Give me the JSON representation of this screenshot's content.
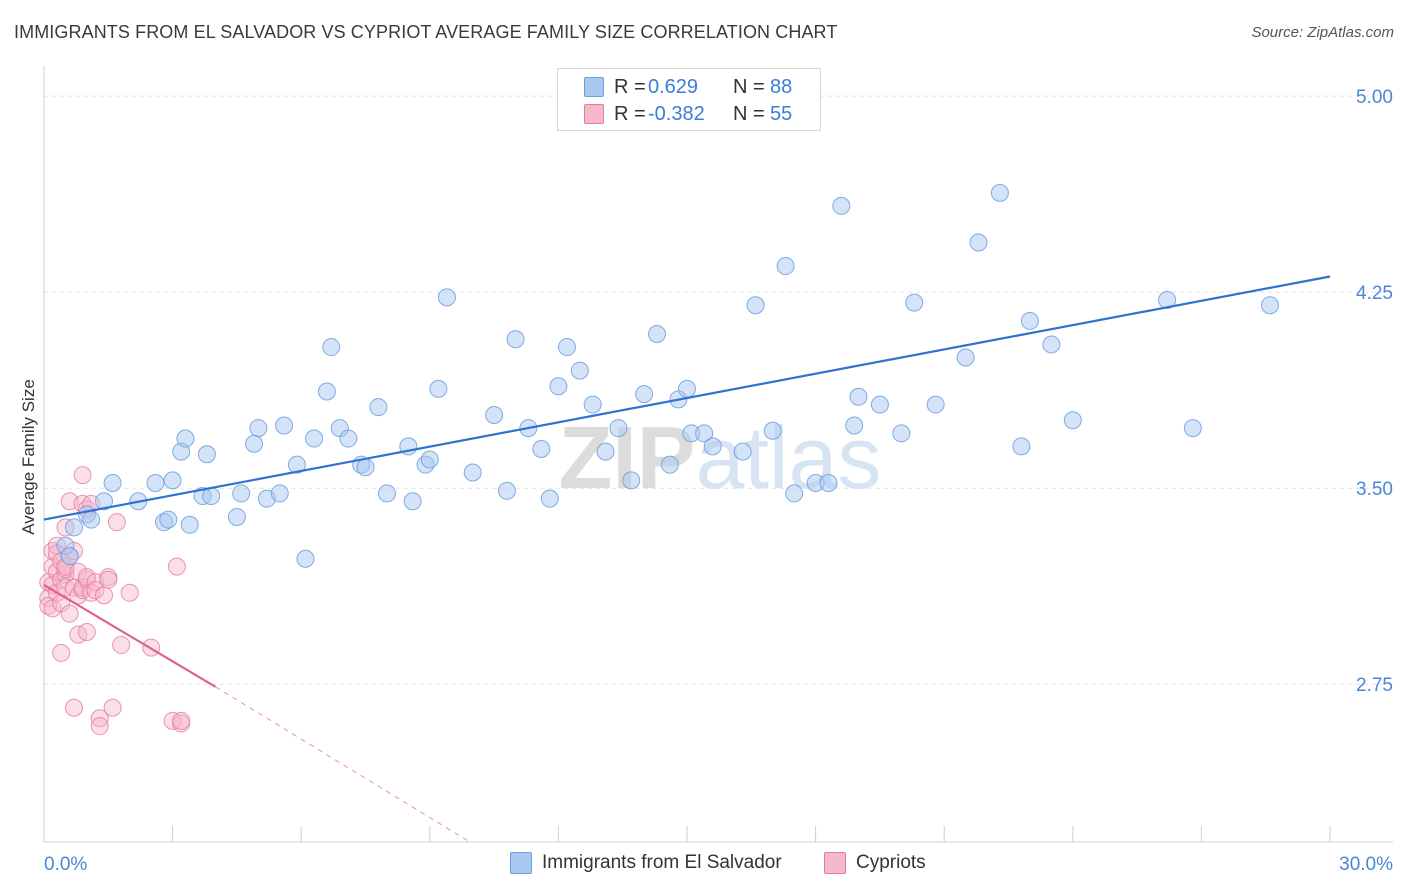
{
  "header": {
    "title": "IMMIGRANTS FROM EL SALVADOR VS CYPRIOT AVERAGE FAMILY SIZE CORRELATION CHART",
    "source": "Source: ZipAtlas.com"
  },
  "legend_top": {
    "rows": [
      {
        "r_label": "R =",
        "r_value": "0.629",
        "n_label": "N =",
        "n_value": "88"
      },
      {
        "r_label": "R =",
        "r_value": "-0.382",
        "n_label": "N =",
        "n_value": "55"
      }
    ]
  },
  "legend_bottom": {
    "items": [
      {
        "label": "Immigrants from El Salvador"
      },
      {
        "label": "Cypriots"
      }
    ]
  },
  "colors": {
    "blue_fill": "#a9c8f0",
    "blue_stroke": "#6a9fe0",
    "blue_line": "#2e72d2",
    "pink_fill": "#f5b8cc",
    "pink_stroke": "#e87aa0",
    "pink_line": "#e0608e",
    "tick_label": "#4a86d8",
    "grid": "#e3e3e3"
  },
  "chart_data": {
    "type": "scatter",
    "title": "IMMIGRANTS FROM EL SALVADOR VS CYPRIOT AVERAGE FAMILY SIZE CORRELATION CHART",
    "xlabel": "",
    "ylabel": "Average Family Size",
    "xlim": [
      0,
      30
    ],
    "ylim": [
      2.2,
      5.1
    ],
    "x_tick_labels": [
      "0.0%",
      "30.0%"
    ],
    "y_ticks": [
      2.75,
      3.5,
      4.25,
      5.0
    ],
    "y_tick_labels": [
      "2.75",
      "3.50",
      "4.25",
      "5.00"
    ],
    "grid": true,
    "legend_position": "top-center",
    "watermark": "ZIPatlas",
    "series": [
      {
        "name": "Immigrants from El Salvador",
        "color": "#a9c8f0",
        "x": [
          0.5,
          0.6,
          0.7,
          1.0,
          1.1,
          1.4,
          1.6,
          2.2,
          2.6,
          2.8,
          2.9,
          3.0,
          3.2,
          3.3,
          3.4,
          3.7,
          3.8,
          3.9,
          4.5,
          4.6,
          4.9,
          5.0,
          5.2,
          5.5,
          5.6,
          5.9,
          6.1,
          6.3,
          6.6,
          6.7,
          6.9,
          7.1,
          7.4,
          7.5,
          7.8,
          8.0,
          8.5,
          8.6,
          8.9,
          9.0,
          9.2,
          9.4,
          10.0,
          10.5,
          10.8,
          11.0,
          11.3,
          11.6,
          11.8,
          12.0,
          12.2,
          12.5,
          12.8,
          13.1,
          13.4,
          13.7,
          14.0,
          14.3,
          14.6,
          14.8,
          15.0,
          15.1,
          15.4,
          15.6,
          16.3,
          16.6,
          17.0,
          17.3,
          17.5,
          18.0,
          18.3,
          18.6,
          18.9,
          19.0,
          19.5,
          20.0,
          20.3,
          20.8,
          21.5,
          21.8,
          22.3,
          22.8,
          23.0,
          23.5,
          24.0,
          26.2,
          26.8,
          28.6
        ],
        "y": [
          3.28,
          3.24,
          3.35,
          3.4,
          3.38,
          3.45,
          3.52,
          3.45,
          3.52,
          3.37,
          3.38,
          3.53,
          3.64,
          3.69,
          3.36,
          3.47,
          3.63,
          3.47,
          3.39,
          3.48,
          3.67,
          3.73,
          3.46,
          3.48,
          3.74,
          3.59,
          3.23,
          3.69,
          3.87,
          4.04,
          3.73,
          3.69,
          3.59,
          3.58,
          3.81,
          3.48,
          3.66,
          3.45,
          3.59,
          3.61,
          3.88,
          4.23,
          3.56,
          3.78,
          3.49,
          4.07,
          3.73,
          3.65,
          3.46,
          3.89,
          4.04,
          3.95,
          3.82,
          3.64,
          3.73,
          3.53,
          3.86,
          4.09,
          3.59,
          3.84,
          3.88,
          3.71,
          3.71,
          3.66,
          3.64,
          4.2,
          3.72,
          4.35,
          3.48,
          3.52,
          3.52,
          4.58,
          3.74,
          3.85,
          3.82,
          3.71,
          4.21,
          3.82,
          4.0,
          4.44,
          4.63,
          3.66,
          4.14,
          4.05,
          3.76,
          4.22,
          3.73,
          4.2
        ]
      },
      {
        "name": "Cypriots",
        "color": "#f5b8cc",
        "x": [
          0.1,
          0.1,
          0.1,
          0.2,
          0.2,
          0.2,
          0.2,
          0.3,
          0.3,
          0.3,
          0.3,
          0.4,
          0.4,
          0.4,
          0.4,
          0.5,
          0.5,
          0.5,
          0.5,
          0.5,
          0.6,
          0.6,
          0.6,
          0.7,
          0.7,
          0.7,
          0.8,
          0.8,
          0.8,
          0.9,
          0.9,
          0.9,
          0.9,
          1.0,
          1.0,
          1.0,
          1.0,
          1.1,
          1.1,
          1.2,
          1.2,
          1.3,
          1.3,
          1.4,
          1.5,
          1.5,
          1.6,
          1.7,
          1.8,
          2.0,
          2.5,
          3.0,
          3.1,
          3.2,
          3.2
        ],
        "y": [
          3.14,
          3.08,
          3.05,
          3.2,
          3.13,
          3.26,
          3.04,
          3.28,
          3.18,
          3.25,
          3.1,
          3.15,
          3.22,
          2.87,
          3.06,
          3.17,
          3.19,
          3.2,
          3.12,
          3.35,
          3.45,
          3.24,
          3.02,
          2.66,
          3.26,
          3.12,
          3.18,
          3.09,
          2.94,
          3.44,
          3.55,
          3.11,
          3.12,
          3.42,
          2.95,
          3.15,
          3.16,
          3.1,
          3.44,
          3.14,
          3.11,
          2.62,
          2.59,
          3.09,
          3.16,
          3.15,
          2.66,
          3.37,
          2.9,
          3.1,
          2.89,
          2.61,
          3.2,
          2.6,
          2.61
        ]
      }
    ],
    "trend_lines": [
      {
        "series": "Immigrants from El Salvador",
        "x": [
          0,
          30
        ],
        "y": [
          3.38,
          4.31
        ]
      },
      {
        "series": "Cypriots",
        "x_solid": [
          0,
          4.0
        ],
        "y_solid": [
          3.13,
          2.74
        ],
        "x_dashed": [
          4.0,
          11.0
        ],
        "y_dashed": [
          2.74,
          2.04
        ]
      }
    ]
  }
}
